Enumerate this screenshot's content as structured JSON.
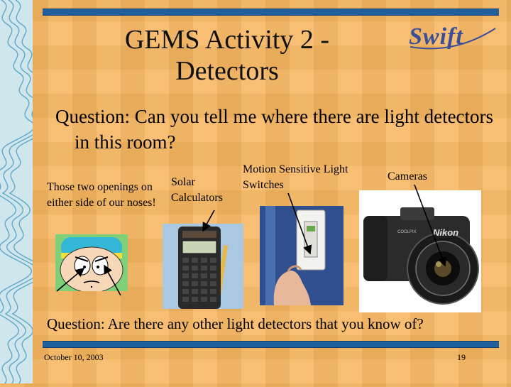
{
  "slide": {
    "title": "GEMS Activity 2 - Detectors",
    "logo_text": "Swift",
    "question_1": "Question: Can you tell me where there are light detectors in this room?",
    "question_2": "Question: Are there any other light detectors that you know of?",
    "footer_date": "October 10, 2003",
    "page_number": "19",
    "colors": {
      "background": "#f6b55f",
      "bar": "#1f5f9b",
      "left_strip": "#cfe6ec",
      "logo": "#3a4f9a"
    }
  },
  "labels": {
    "eyes": "Those two openings on either side of our noses!",
    "calculators": "Solar Calculators",
    "switches": "Motion Sensitive Light Switches",
    "cameras": "Cameras"
  },
  "camera_brand": "Nikon",
  "camera_model": "COOLPIX"
}
